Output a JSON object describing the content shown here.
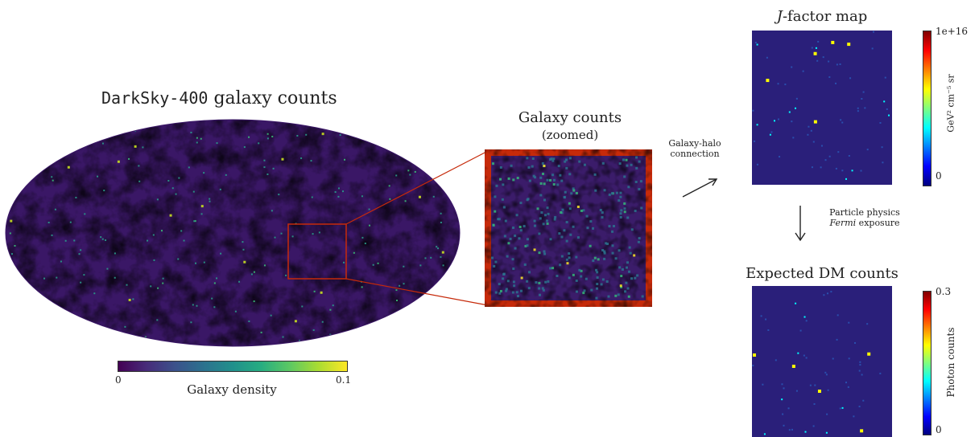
{
  "sky_map": {
    "title_mono": "DarkSky-400",
    "title_rest": " galaxy counts",
    "colorbar": {
      "min": "0",
      "max": "0.1",
      "label": "Galaxy density"
    }
  },
  "zoom_panel": {
    "title_line1": "Galaxy counts",
    "title_line2": "(zoomed)",
    "border_color": "#c62a0a"
  },
  "step1": {
    "label_line1": "Galaxy-halo",
    "label_line2": "connection"
  },
  "jfactor": {
    "title_italic": "J",
    "title_rest": "-factor map",
    "colorbar": {
      "max": "1e+16",
      "min": "0",
      "label": "GeV² cm⁻⁵ sr"
    }
  },
  "step2": {
    "label_line1": "Particle physics",
    "label_line2_italic": "Fermi",
    "label_line2_rest": " exposure"
  },
  "dm_counts": {
    "title": "Expected DM counts",
    "colorbar": {
      "max": "0.3",
      "min": "0",
      "label": "Photon counts"
    }
  },
  "colors": {
    "viridis_dark": "#440154",
    "viridis_mid": "#21908c",
    "viridis_bright": "#fde725",
    "map_background": "#3b1c6a",
    "highlight": "#c62a0a"
  }
}
